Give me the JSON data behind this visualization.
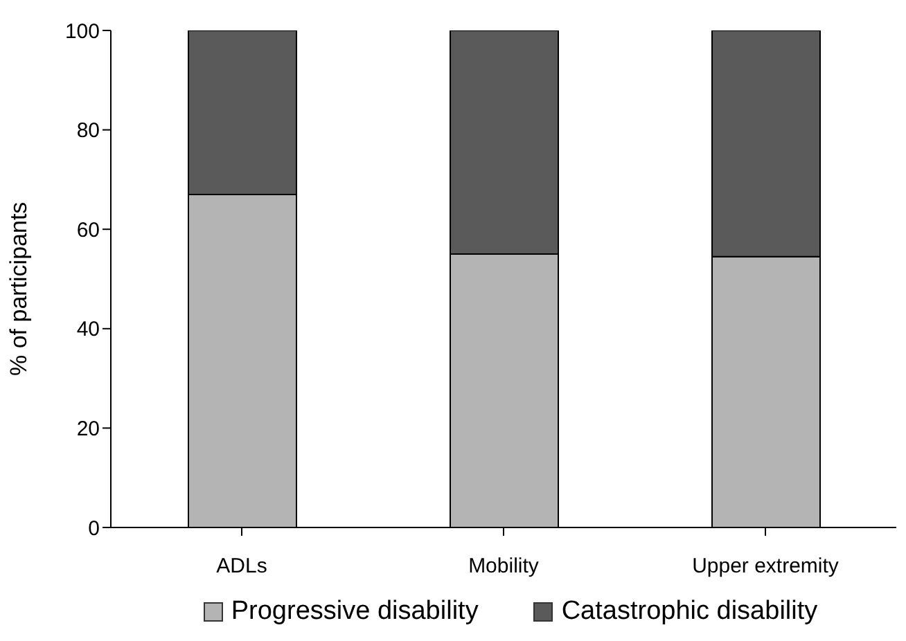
{
  "chart_data": {
    "type": "bar",
    "ylabel": "% of participants",
    "categories": [
      "ADLs",
      "Mobility",
      "Upper extremity"
    ],
    "stacked": true,
    "series": [
      {
        "name": "Progressive disability",
        "color": "#b4b4b4",
        "values": [
          67,
          55,
          54.5
        ]
      },
      {
        "name": "Catastrophic disability",
        "color": "#5a5a5a",
        "values": [
          33,
          45,
          45.5
        ]
      }
    ],
    "ylim": [
      0,
      100
    ],
    "yticks": [
      0,
      20,
      40,
      60,
      80,
      100
    ],
    "grid": false,
    "legend": "bottom"
  }
}
